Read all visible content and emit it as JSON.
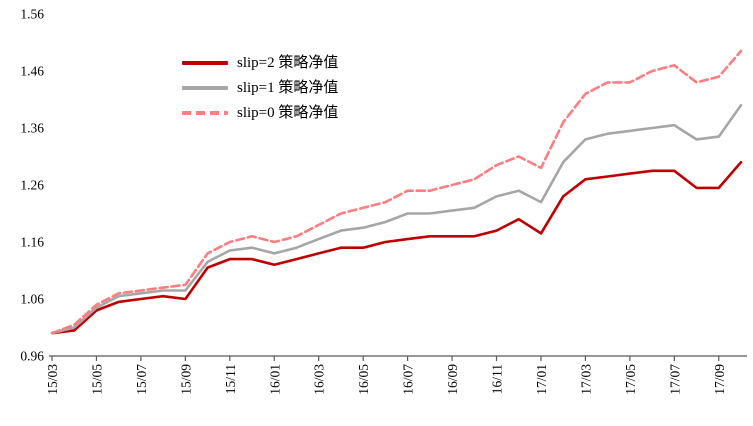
{
  "chart_data": {
    "type": "line",
    "title": "",
    "xlabel": "",
    "ylabel": "",
    "grid": false,
    "legend_position": "upper-left",
    "ylim": [
      0.96,
      1.56
    ],
    "y_ticks": [
      0.96,
      1.06,
      1.16,
      1.26,
      1.36,
      1.46,
      1.56
    ],
    "y_tick_labels": [
      "0.96",
      "1.06",
      "1.16",
      "1.26",
      "1.36",
      "1.46",
      "1.56"
    ],
    "x": [
      "15/03",
      "15/04",
      "15/05",
      "15/06",
      "15/07",
      "15/08",
      "15/09",
      "15/10",
      "15/11",
      "15/12",
      "16/01",
      "16/02",
      "16/03",
      "16/04",
      "16/05",
      "16/06",
      "16/07",
      "16/08",
      "16/09",
      "16/10",
      "16/11",
      "16/12",
      "17/01",
      "17/02",
      "17/03",
      "17/04",
      "17/05",
      "17/06",
      "17/07",
      "17/08",
      "17/09",
      "17/10"
    ],
    "x_tick_labels": [
      "15/03",
      "15/05",
      "15/07",
      "15/09",
      "15/11",
      "16/01",
      "16/03",
      "16/05",
      "16/07",
      "16/09",
      "16/11",
      "17/01",
      "17/03",
      "17/05",
      "17/07",
      "17/09"
    ],
    "x_tick_every": 2,
    "series": [
      {
        "name": "slip=2 策略净值",
        "color": "#C00000",
        "dashed": false,
        "values": [
          1.0,
          1.005,
          1.04,
          1.055,
          1.06,
          1.065,
          1.06,
          1.115,
          1.13,
          1.13,
          1.12,
          1.13,
          1.14,
          1.15,
          1.15,
          1.16,
          1.165,
          1.17,
          1.17,
          1.17,
          1.18,
          1.2,
          1.175,
          1.24,
          1.27,
          1.275,
          1.28,
          1.285,
          1.285,
          1.255,
          1.255,
          1.3
        ]
      },
      {
        "name": "slip=1 策略净值",
        "color": "#A6A6A6",
        "dashed": false,
        "values": [
          1.0,
          1.01,
          1.045,
          1.065,
          1.07,
          1.075,
          1.075,
          1.125,
          1.145,
          1.15,
          1.14,
          1.15,
          1.165,
          1.18,
          1.185,
          1.195,
          1.21,
          1.21,
          1.215,
          1.22,
          1.24,
          1.25,
          1.23,
          1.3,
          1.34,
          1.35,
          1.355,
          1.36,
          1.365,
          1.34,
          1.345,
          1.4
        ]
      },
      {
        "name": "slip=0 策略净值",
        "color": "#FF7C80",
        "dashed": true,
        "values": [
          1.0,
          1.015,
          1.05,
          1.07,
          1.075,
          1.08,
          1.085,
          1.14,
          1.16,
          1.17,
          1.16,
          1.17,
          1.19,
          1.21,
          1.22,
          1.23,
          1.25,
          1.25,
          1.26,
          1.27,
          1.295,
          1.31,
          1.29,
          1.37,
          1.42,
          1.44,
          1.44,
          1.46,
          1.47,
          1.44,
          1.45,
          1.495
        ]
      }
    ]
  }
}
